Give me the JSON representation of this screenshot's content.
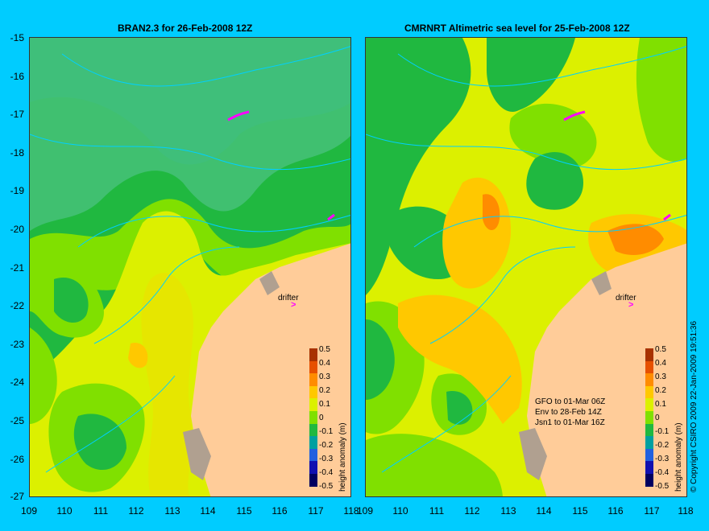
{
  "left_panel": {
    "title": "BRAN2.3 for 26-Feb-2008 12Z",
    "drifter": "drifter"
  },
  "right_panel": {
    "title": "CMRNRT Altimetric sea level  for 25-Feb-2008 12Z",
    "drifter": "drifter",
    "missions": [
      "GFO to 01-Mar 06Z",
      "Env to 28-Feb 14Z",
      "Jsn1 to 01-Mar 16Z"
    ]
  },
  "y_ticks": [
    "-15",
    "-16",
    "-17",
    "-18",
    "-19",
    "-20",
    "-21",
    "-22",
    "-23",
    "-24",
    "-25",
    "-26",
    "-27"
  ],
  "x_ticks": [
    "109",
    "110",
    "111",
    "112",
    "113",
    "114",
    "115",
    "116",
    "117",
    "118"
  ],
  "colorbar": {
    "title": "height anomaly (m)",
    "labels": [
      "0.5",
      "0.4",
      "0.3",
      "0.2",
      "0.1",
      "0",
      "-0.1",
      "-0.2",
      "-0.3",
      "-0.4",
      "-0.5"
    ],
    "colors": [
      "#a83200",
      "#e65000",
      "#ff8c00",
      "#ffc800",
      "#dcf000",
      "#80e000",
      "#20b840",
      "#00a0a0",
      "#2060e0",
      "#1010b0",
      "#000060"
    ]
  },
  "copyright": "© Copyright CSIRO 2009   22-Jan-2009 19:51:36",
  "colors": {
    "background": "#00ccff",
    "land": "#ffcc99",
    "rock": "#b0a090",
    "track": "#00d0ff",
    "drifter": "#ff00ff"
  }
}
